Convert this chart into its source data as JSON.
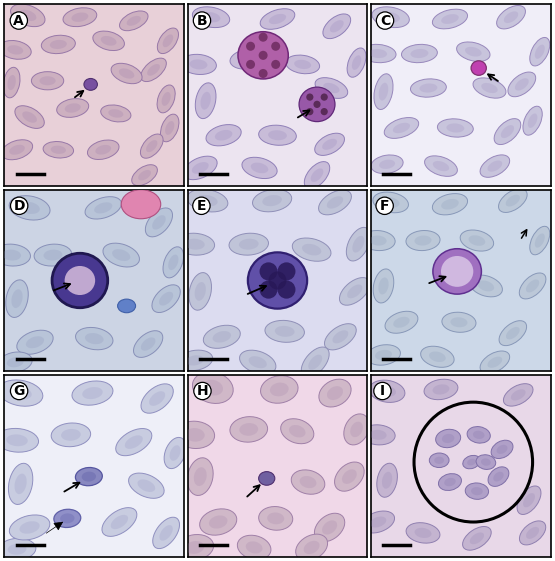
{
  "figure_size": [
    5.55,
    5.61
  ],
  "dpi": 100,
  "panel_labels": [
    "A",
    "B",
    "C",
    "D",
    "E",
    "F",
    "G",
    "H",
    "I"
  ],
  "panel_border_linewidth": 1.2,
  "label_fontsize": 10,
  "label_weight": "bold",
  "bg_colors": [
    "#e8d0d8",
    "#ece4f0",
    "#f0eef8",
    "#ccd4e4",
    "#dcdcf0",
    "#ccd8e8",
    "#eeeff8",
    "#f0d8e8",
    "#e8d8e8"
  ],
  "rbc_colors": [
    [
      "#cdb0c0",
      "#9878a8"
    ],
    [
      "#c8bcd8",
      "#9080b8"
    ],
    [
      "#c8c4dc",
      "#9888bc"
    ],
    [
      "#b8c4d8",
      "#8890b8"
    ],
    [
      "#c0c4d8",
      "#9090b8"
    ],
    [
      "#bcc8d8",
      "#8898b8"
    ],
    [
      "#c8cce0",
      "#9090c0"
    ],
    [
      "#d0b8c8",
      "#a080a8"
    ],
    [
      "#c4b4d0",
      "#9080b0"
    ]
  ],
  "scale_bar_linewidth": 2.5
}
